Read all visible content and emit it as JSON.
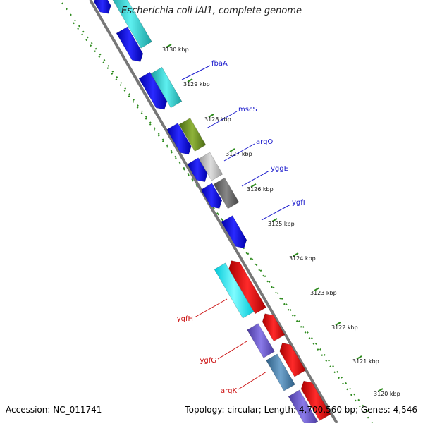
{
  "title": "Escherichia coli IAI1, complete genome",
  "footer": {
    "accession": "Accession: NC_011741",
    "info": "Topology: circular; Length: 4,700,560 bp; Genes: 4,546"
  },
  "ticks": [
    "3130 kbp",
    "3129 kbp",
    "3128 kbp",
    "3127 kbp",
    "3126 kbp",
    "3125 kbp",
    "3124 kbp",
    "3123 kbp",
    "3122 kbp",
    "3121 kbp",
    "3120 kbp"
  ],
  "gene_labels": [
    {
      "name": "fbaA",
      "color": "#1a1acc"
    },
    {
      "name": "mscS",
      "color": "#1a1acc"
    },
    {
      "name": "argO",
      "color": "#1a1acc"
    },
    {
      "name": "yggE",
      "color": "#1a1acc"
    },
    {
      "name": "ygfI",
      "color": "#1a1acc"
    },
    {
      "name": "ygfH",
      "color": "#cc1111"
    },
    {
      "name": "ygfG",
      "color": "#cc1111"
    },
    {
      "name": "argK",
      "color": "#cc1111"
    }
  ],
  "colors": {
    "backbone": "#777777",
    "tick_green": "#2e8b1e",
    "forward_cds": "#0000ee",
    "reverse_cds": "#ee0000",
    "feature_cyan": "#22cccc",
    "feature_olive": "#6b8e23",
    "feature_gray_light": "#bbbbbb",
    "feature_gray_dark": "#666666",
    "feature_purple": "#6a5acd",
    "feature_steel": "#4682b4"
  }
}
